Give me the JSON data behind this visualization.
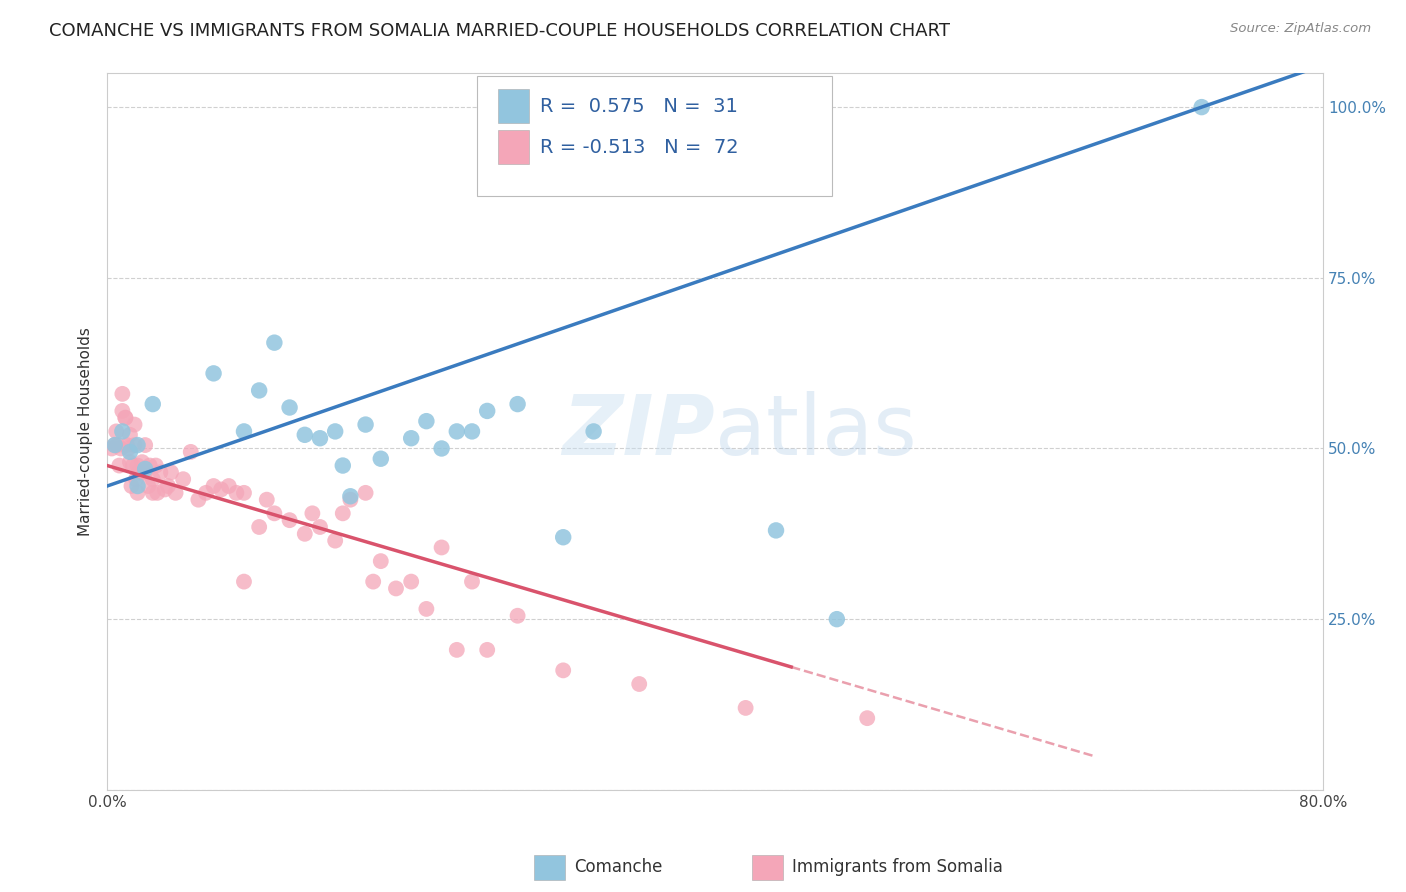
{
  "title": "COMANCHE VS IMMIGRANTS FROM SOMALIA MARRIED-COUPLE HOUSEHOLDS CORRELATION CHART",
  "source": "Source: ZipAtlas.com",
  "ylabel": "Married-couple Households",
  "blue_color": "#92c5de",
  "pink_color": "#f4a6b8",
  "blue_line_color": "#3a7bbf",
  "pink_line_color": "#d9536c",
  "watermark_zip": "ZIP",
  "watermark_atlas": "atlas",
  "background_color": "#ffffff",
  "blue_scatter_x": [
    0.005,
    0.01,
    0.015,
    0.02,
    0.02,
    0.025,
    0.03,
    0.07,
    0.09,
    0.1,
    0.11,
    0.12,
    0.13,
    0.14,
    0.15,
    0.155,
    0.16,
    0.17,
    0.18,
    0.2,
    0.21,
    0.22,
    0.23,
    0.24,
    0.25,
    0.27,
    0.3,
    0.32,
    0.44,
    0.48,
    0.72
  ],
  "blue_scatter_y": [
    0.505,
    0.525,
    0.495,
    0.505,
    0.445,
    0.47,
    0.565,
    0.61,
    0.525,
    0.585,
    0.655,
    0.56,
    0.52,
    0.515,
    0.525,
    0.475,
    0.43,
    0.535,
    0.485,
    0.515,
    0.54,
    0.5,
    0.525,
    0.525,
    0.555,
    0.565,
    0.37,
    0.525,
    0.38,
    0.25,
    1.0
  ],
  "pink_scatter_x": [
    0.003,
    0.005,
    0.006,
    0.007,
    0.008,
    0.009,
    0.01,
    0.01,
    0.012,
    0.012,
    0.013,
    0.014,
    0.015,
    0.015,
    0.016,
    0.017,
    0.018,
    0.018,
    0.019,
    0.02,
    0.02,
    0.021,
    0.022,
    0.023,
    0.025,
    0.025,
    0.027,
    0.028,
    0.03,
    0.03,
    0.032,
    0.033,
    0.035,
    0.038,
    0.04,
    0.042,
    0.045,
    0.05,
    0.055,
    0.06,
    0.065,
    0.07,
    0.075,
    0.08,
    0.085,
    0.09,
    0.09,
    0.1,
    0.105,
    0.11,
    0.12,
    0.13,
    0.135,
    0.14,
    0.15,
    0.155,
    0.16,
    0.17,
    0.175,
    0.18,
    0.19,
    0.2,
    0.21,
    0.22,
    0.23,
    0.24,
    0.25,
    0.27,
    0.3,
    0.35,
    0.42,
    0.5
  ],
  "pink_scatter_y": [
    0.5,
    0.505,
    0.525,
    0.505,
    0.475,
    0.5,
    0.555,
    0.58,
    0.545,
    0.545,
    0.505,
    0.5,
    0.48,
    0.52,
    0.445,
    0.475,
    0.505,
    0.535,
    0.455,
    0.475,
    0.435,
    0.465,
    0.465,
    0.48,
    0.505,
    0.465,
    0.445,
    0.475,
    0.435,
    0.455,
    0.475,
    0.435,
    0.465,
    0.44,
    0.445,
    0.465,
    0.435,
    0.455,
    0.495,
    0.425,
    0.435,
    0.445,
    0.44,
    0.445,
    0.435,
    0.435,
    0.305,
    0.385,
    0.425,
    0.405,
    0.395,
    0.375,
    0.405,
    0.385,
    0.365,
    0.405,
    0.425,
    0.435,
    0.305,
    0.335,
    0.295,
    0.305,
    0.265,
    0.355,
    0.205,
    0.305,
    0.205,
    0.255,
    0.175,
    0.155,
    0.12,
    0.105
  ],
  "xlim": [
    0.0,
    0.8
  ],
  "ylim": [
    0.0,
    1.05
  ],
  "grid_color": "#d0d0d0",
  "title_fontsize": 13,
  "axis_label_fontsize": 11,
  "tick_fontsize": 11,
  "legend_text_color": "#3060a0"
}
